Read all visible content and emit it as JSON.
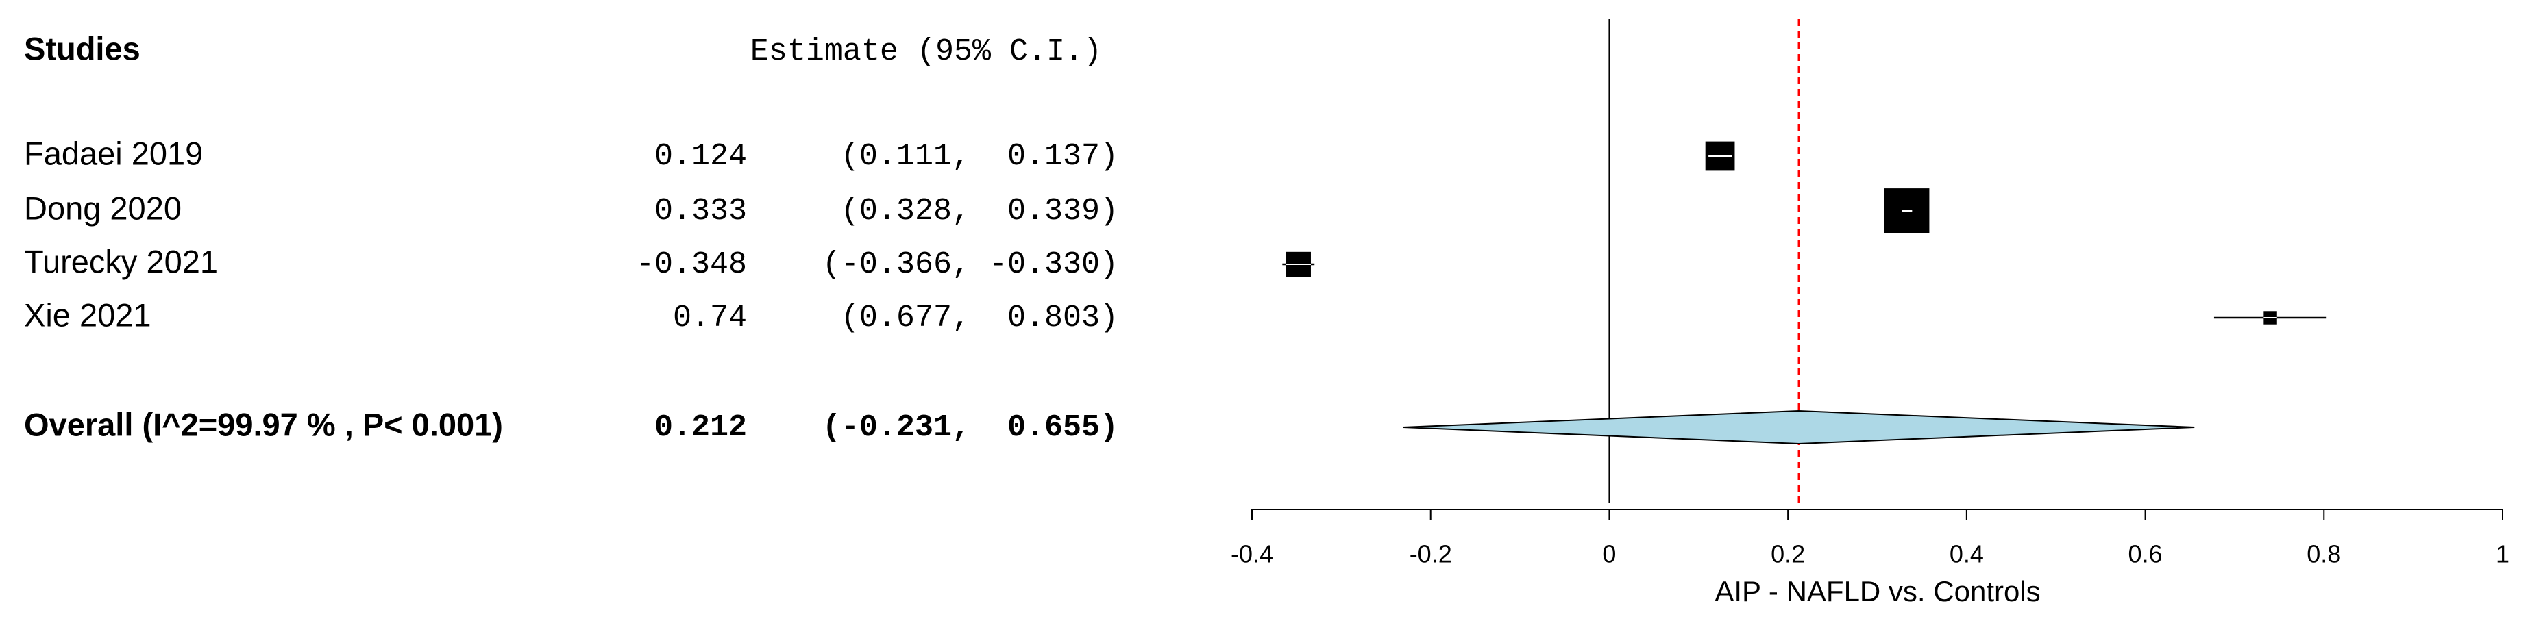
{
  "chart_data": {
    "type": "forest",
    "studies_header": "Studies",
    "estimate_header": "Estimate (95% C.I.)",
    "studies": [
      {
        "name": "Fadaei 2019",
        "estimate": 0.124,
        "lower": 0.111,
        "upper": 0.137,
        "ci_label": "(0.111,  0.137)"
      },
      {
        "name": "Dong 2020",
        "estimate": 0.333,
        "lower": 0.328,
        "upper": 0.339,
        "ci_label": "(0.328,  0.339)"
      },
      {
        "name": "Turecky 2021",
        "estimate": -0.348,
        "lower": -0.366,
        "upper": -0.33,
        "ci_label": "(-0.366, -0.330)"
      },
      {
        "name": "Xie 2021",
        "estimate": 0.74,
        "lower": 0.677,
        "upper": 0.803,
        "ci_label": "(0.677,  0.803)"
      }
    ],
    "overall": {
      "name": "Overall (I^2=99.97 % , P< 0.001)",
      "estimate": 0.212,
      "lower": -0.231,
      "upper": 0.655,
      "ci_label": "(-0.231,  0.655)",
      "color": "#add8e6"
    },
    "box_color": "#000000",
    "reference_line_color": "#ff0000",
    "xlabel": "AIP - NAFLD vs. Controls",
    "xlim": [
      -0.4,
      1
    ],
    "xticks": [
      -0.4,
      -0.2,
      0,
      0.2,
      0.4,
      0.6,
      0.8,
      1
    ]
  }
}
